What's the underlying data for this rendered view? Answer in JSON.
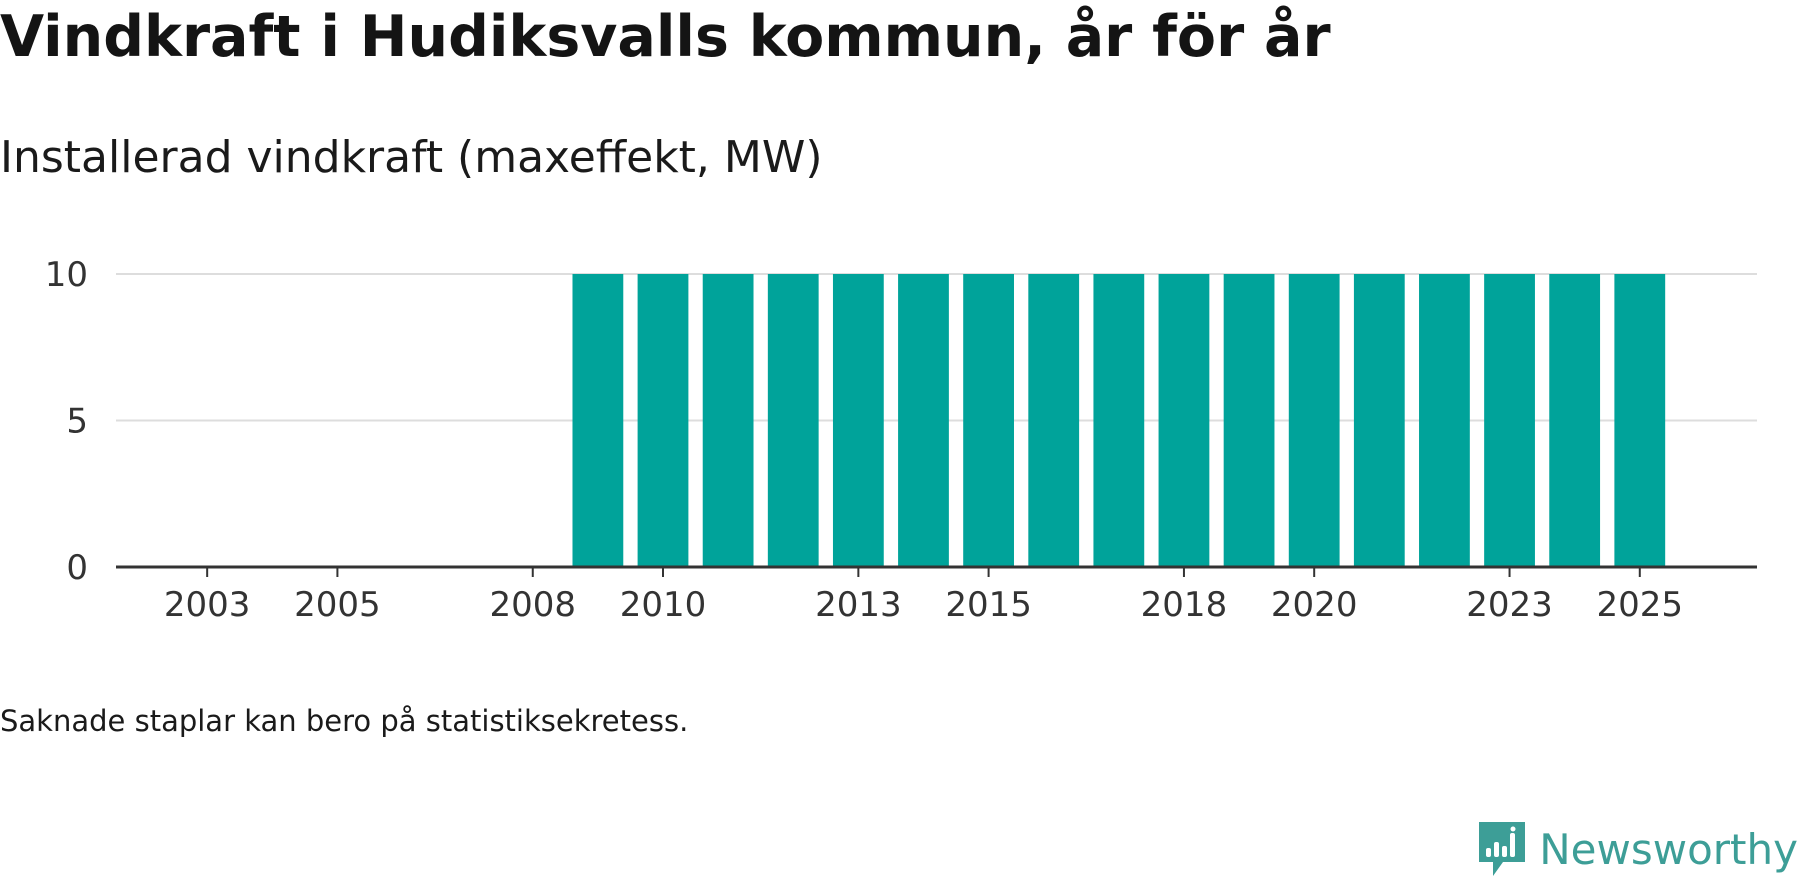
{
  "title": "Vindkraft i Hudiksvalls kommun, år för år",
  "subtitle": "Installerad vindkraft (maxeffekt, MW)",
  "note": "Saknade staplar kan bero på statistiksekretess.",
  "brand": {
    "name": "Newsworthy",
    "icon": "newsworthy-logo-icon",
    "color": "#3d9e97"
  },
  "chart_data": {
    "type": "bar",
    "title": "Vindkraft i Hudiksvalls kommun, år för år",
    "subtitle": "Installerad vindkraft (maxeffekt, MW)",
    "xlabel": "",
    "ylabel": "Installerad vindkraft (maxeffekt, MW)",
    "xlim": [
      2001.6,
      2026.8
    ],
    "ylim": [
      0,
      10
    ],
    "yticks": [
      0,
      5,
      10
    ],
    "xticks": [
      2003,
      2005,
      2008,
      2010,
      2013,
      2015,
      2018,
      2020,
      2023,
      2025
    ],
    "grid": true,
    "bar_color": "#00a39a",
    "categories": [
      2009,
      2010,
      2011,
      2012,
      2013,
      2014,
      2015,
      2016,
      2017,
      2018,
      2019,
      2020,
      2021,
      2022,
      2023,
      2024,
      2025
    ],
    "values": [
      10,
      10,
      10,
      10,
      10,
      10,
      10,
      10,
      10,
      10,
      10,
      10,
      10,
      10,
      10,
      10,
      10
    ]
  }
}
